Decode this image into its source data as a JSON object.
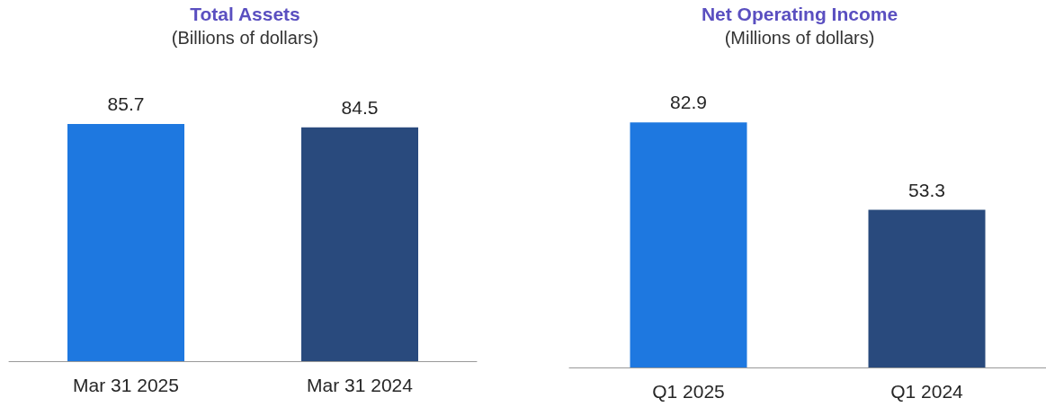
{
  "chart_data": [
    {
      "type": "bar",
      "title": "Total Assets",
      "subtitle": "(Billions of dollars)",
      "categories": [
        "Mar 31 2025",
        "Mar 31 2024"
      ],
      "values": [
        85.7,
        84.5
      ],
      "colors": [
        "#1e78e0",
        "#294a7d"
      ],
      "data_labels": true
    },
    {
      "type": "bar",
      "title": "Net Operating Income",
      "subtitle": "(Millions of dollars)",
      "categories": [
        "Q1 2025",
        "Q1 2024"
      ],
      "values": [
        82.9,
        53.3
      ],
      "colors": [
        "#1e78e0",
        "#294a7d"
      ],
      "data_labels": true
    }
  ]
}
